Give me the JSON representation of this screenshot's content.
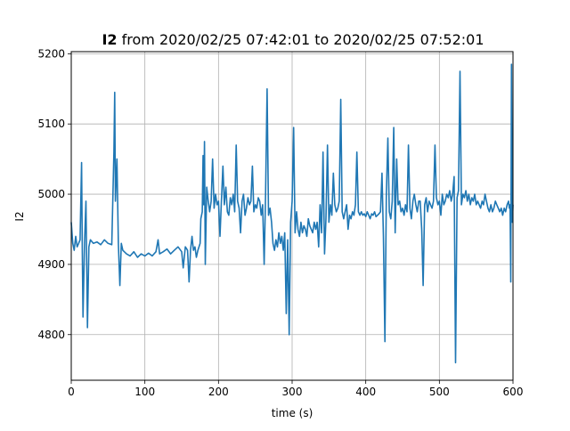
{
  "chart_data": {
    "type": "line",
    "title_bold": "I2",
    "title_rest": " from 2020/02/25 07:42:01 to 2020/02/25 07:52:01",
    "xlabel": "time (s)",
    "ylabel": "I2",
    "xlim": [
      0,
      600
    ],
    "ylim": [
      4735,
      5203
    ],
    "grid": true,
    "x_ticks": [
      0,
      100,
      200,
      300,
      400,
      500,
      600
    ],
    "y_ticks": [
      4800,
      4900,
      5000,
      5100,
      5200
    ],
    "series_color": "#1f77b4",
    "points": [
      [
        0,
        4960
      ],
      [
        2,
        4930
      ],
      [
        4,
        4920
      ],
      [
        6,
        4940
      ],
      [
        8,
        4925
      ],
      [
        10,
        4930
      ],
      [
        12,
        4935
      ],
      [
        14,
        5045
      ],
      [
        15,
        4920
      ],
      [
        16,
        4825
      ],
      [
        18,
        4930
      ],
      [
        20,
        4990
      ],
      [
        22,
        4810
      ],
      [
        24,
        4925
      ],
      [
        26,
        4935
      ],
      [
        30,
        4930
      ],
      [
        35,
        4932
      ],
      [
        40,
        4928
      ],
      [
        45,
        4935
      ],
      [
        50,
        4930
      ],
      [
        55,
        4928
      ],
      [
        58,
        5060
      ],
      [
        59,
        5145
      ],
      [
        60,
        4990
      ],
      [
        62,
        5050
      ],
      [
        64,
        4930
      ],
      [
        66,
        4870
      ],
      [
        68,
        4930
      ],
      [
        70,
        4920
      ],
      [
        75,
        4915
      ],
      [
        80,
        4912
      ],
      [
        85,
        4918
      ],
      [
        90,
        4910
      ],
      [
        95,
        4915
      ],
      [
        100,
        4912
      ],
      [
        105,
        4916
      ],
      [
        110,
        4912
      ],
      [
        115,
        4918
      ],
      [
        118,
        4935
      ],
      [
        120,
        4915
      ],
      [
        125,
        4918
      ],
      [
        130,
        4922
      ],
      [
        135,
        4915
      ],
      [
        140,
        4920
      ],
      [
        145,
        4925
      ],
      [
        150,
        4918
      ],
      [
        152,
        4895
      ],
      [
        155,
        4925
      ],
      [
        158,
        4920
      ],
      [
        160,
        4875
      ],
      [
        162,
        4920
      ],
      [
        164,
        4940
      ],
      [
        166,
        4920
      ],
      [
        168,
        4925
      ],
      [
        170,
        4910
      ],
      [
        172,
        4920
      ],
      [
        175,
        4930
      ],
      [
        176,
        4965
      ],
      [
        178,
        4975
      ],
      [
        179,
        5055
      ],
      [
        180,
        4985
      ],
      [
        181,
        5075
      ],
      [
        182,
        4900
      ],
      [
        184,
        5010
      ],
      [
        186,
        4990
      ],
      [
        188,
        4975
      ],
      [
        190,
        4990
      ],
      [
        192,
        5050
      ],
      [
        194,
        4980
      ],
      [
        196,
        5000
      ],
      [
        198,
        4985
      ],
      [
        200,
        4990
      ],
      [
        202,
        4940
      ],
      [
        204,
        4990
      ],
      [
        206,
        5040
      ],
      [
        208,
        4985
      ],
      [
        210,
        5010
      ],
      [
        212,
        4975
      ],
      [
        214,
        4970
      ],
      [
        216,
        4995
      ],
      [
        218,
        4985
      ],
      [
        220,
        5000
      ],
      [
        222,
        4975
      ],
      [
        224,
        5070
      ],
      [
        226,
        4990
      ],
      [
        228,
        4980
      ],
      [
        230,
        4945
      ],
      [
        232,
        4990
      ],
      [
        234,
        5000
      ],
      [
        236,
        4970
      ],
      [
        238,
        4980
      ],
      [
        240,
        4995
      ],
      [
        242,
        4985
      ],
      [
        244,
        4990
      ],
      [
        246,
        5040
      ],
      [
        248,
        4975
      ],
      [
        250,
        4985
      ],
      [
        252,
        4980
      ],
      [
        254,
        4995
      ],
      [
        256,
        4990
      ],
      [
        258,
        4970
      ],
      [
        260,
        4985
      ],
      [
        262,
        4900
      ],
      [
        264,
        5000
      ],
      [
        266,
        5150
      ],
      [
        268,
        4970
      ],
      [
        270,
        4980
      ],
      [
        272,
        4960
      ],
      [
        274,
        4930
      ],
      [
        276,
        4920
      ],
      [
        278,
        4935
      ],
      [
        280,
        4925
      ],
      [
        282,
        4945
      ],
      [
        284,
        4930
      ],
      [
        286,
        4940
      ],
      [
        288,
        4920
      ],
      [
        290,
        4945
      ],
      [
        292,
        4830
      ],
      [
        294,
        4935
      ],
      [
        296,
        4800
      ],
      [
        298,
        4960
      ],
      [
        300,
        4990
      ],
      [
        302,
        5095
      ],
      [
        304,
        4945
      ],
      [
        306,
        4975
      ],
      [
        308,
        4950
      ],
      [
        310,
        4940
      ],
      [
        312,
        4960
      ],
      [
        314,
        4945
      ],
      [
        316,
        4955
      ],
      [
        318,
        4950
      ],
      [
        320,
        4940
      ],
      [
        322,
        4965
      ],
      [
        324,
        4955
      ],
      [
        326,
        4950
      ],
      [
        328,
        4945
      ],
      [
        330,
        4960
      ],
      [
        332,
        4950
      ],
      [
        334,
        4960
      ],
      [
        336,
        4925
      ],
      [
        338,
        4985
      ],
      [
        340,
        4945
      ],
      [
        342,
        5060
      ],
      [
        344,
        4915
      ],
      [
        346,
        4965
      ],
      [
        348,
        5070
      ],
      [
        350,
        4960
      ],
      [
        352,
        4985
      ],
      [
        354,
        4970
      ],
      [
        356,
        5030
      ],
      [
        358,
        4985
      ],
      [
        360,
        4975
      ],
      [
        362,
        4980
      ],
      [
        364,
        4990
      ],
      [
        366,
        5135
      ],
      [
        368,
        4975
      ],
      [
        370,
        4965
      ],
      [
        372,
        4975
      ],
      [
        374,
        4985
      ],
      [
        376,
        4950
      ],
      [
        378,
        4970
      ],
      [
        380,
        4965
      ],
      [
        382,
        4975
      ],
      [
        384,
        4970
      ],
      [
        386,
        4985
      ],
      [
        388,
        5060
      ],
      [
        390,
        4975
      ],
      [
        392,
        4970
      ],
      [
        394,
        4975
      ],
      [
        396,
        4970
      ],
      [
        398,
        4972
      ],
      [
        400,
        4968
      ],
      [
        402,
        4975
      ],
      [
        404,
        4970
      ],
      [
        406,
        4965
      ],
      [
        408,
        4972
      ],
      [
        410,
        4970
      ],
      [
        412,
        4975
      ],
      [
        414,
        4968
      ],
      [
        416,
        4970
      ],
      [
        418,
        4972
      ],
      [
        420,
        4975
      ],
      [
        422,
        5030
      ],
      [
        424,
        4940
      ],
      [
        426,
        4790
      ],
      [
        428,
        5000
      ],
      [
        430,
        5080
      ],
      [
        432,
        4975
      ],
      [
        434,
        4965
      ],
      [
        436,
        4990
      ],
      [
        438,
        5095
      ],
      [
        440,
        4945
      ],
      [
        442,
        5050
      ],
      [
        444,
        4985
      ],
      [
        446,
        4990
      ],
      [
        448,
        4975
      ],
      [
        450,
        4980
      ],
      [
        452,
        4970
      ],
      [
        454,
        4985
      ],
      [
        456,
        4975
      ],
      [
        458,
        5070
      ],
      [
        460,
        4980
      ],
      [
        462,
        4965
      ],
      [
        464,
        4990
      ],
      [
        466,
        5000
      ],
      [
        468,
        4985
      ],
      [
        470,
        4975
      ],
      [
        472,
        4990
      ],
      [
        474,
        4990
      ],
      [
        476,
        4950
      ],
      [
        478,
        4870
      ],
      [
        480,
        4985
      ],
      [
        482,
        4995
      ],
      [
        484,
        4975
      ],
      [
        486,
        4990
      ],
      [
        488,
        4985
      ],
      [
        490,
        4980
      ],
      [
        492,
        4990
      ],
      [
        494,
        5070
      ],
      [
        496,
        4995
      ],
      [
        498,
        4985
      ],
      [
        500,
        4990
      ],
      [
        502,
        4970
      ],
      [
        504,
        5000
      ],
      [
        506,
        4985
      ],
      [
        508,
        4990
      ],
      [
        510,
        5000
      ],
      [
        512,
        4995
      ],
      [
        514,
        5005
      ],
      [
        516,
        4990
      ],
      [
        518,
        5000
      ],
      [
        520,
        5025
      ],
      [
        522,
        4760
      ],
      [
        524,
        4995
      ],
      [
        526,
        5005
      ],
      [
        528,
        5175
      ],
      [
        530,
        4985
      ],
      [
        532,
        5000
      ],
      [
        534,
        4995
      ],
      [
        536,
        5005
      ],
      [
        538,
        4990
      ],
      [
        540,
        5000
      ],
      [
        542,
        4985
      ],
      [
        544,
        4995
      ],
      [
        546,
        4990
      ],
      [
        548,
        5000
      ],
      [
        550,
        4985
      ],
      [
        552,
        4990
      ],
      [
        554,
        4985
      ],
      [
        556,
        4980
      ],
      [
        558,
        4990
      ],
      [
        560,
        4985
      ],
      [
        562,
        5000
      ],
      [
        564,
        4990
      ],
      [
        566,
        4980
      ],
      [
        568,
        4975
      ],
      [
        570,
        4985
      ],
      [
        572,
        4975
      ],
      [
        574,
        4980
      ],
      [
        576,
        4990
      ],
      [
        578,
        4985
      ],
      [
        580,
        4980
      ],
      [
        582,
        4975
      ],
      [
        584,
        4980
      ],
      [
        586,
        4970
      ],
      [
        588,
        4980
      ],
      [
        590,
        4975
      ],
      [
        592,
        4985
      ],
      [
        594,
        4990
      ],
      [
        595,
        4980
      ],
      [
        596,
        4985
      ],
      [
        597,
        4875
      ],
      [
        598,
        5185
      ],
      [
        599,
        4960
      ],
      [
        600,
        4985
      ]
    ]
  }
}
